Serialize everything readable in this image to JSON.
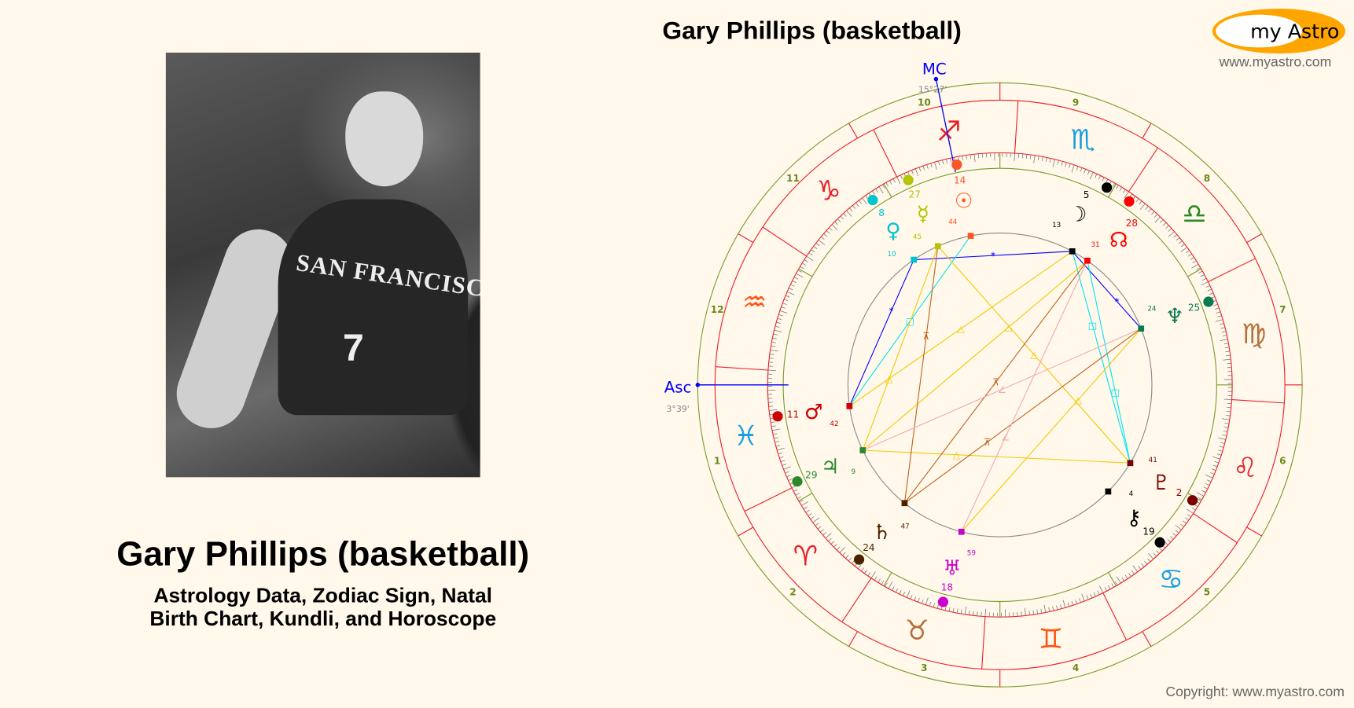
{
  "left": {
    "title": "Gary Phillips (basketball)",
    "subtitle_line1": "Astrology Data, Zodiac Sign, Natal",
    "subtitle_line2": "Birth Chart, Kundli, and Horoscope",
    "photo_jersey": "SAN FRANCISCO",
    "photo_number": "7"
  },
  "header": {
    "chart_title": "Gary Phillips (basketball)",
    "logo_text": "my Astro",
    "url": "www.myastro.com"
  },
  "footer": {
    "copyright": "Copyright: www.myastro.com"
  },
  "chart": {
    "asc": {
      "label": "Asc",
      "value": "3°39'",
      "sign": "Pisces",
      "degree": 3,
      "minute": 39,
      "color": "#0000ff"
    },
    "mc": {
      "label": "MC",
      "value": "15°27'",
      "sign": "Sagittarius",
      "degree": 15,
      "minute": 27,
      "color": "#0000ff"
    },
    "houses": [
      "1",
      "2",
      "3",
      "4",
      "5",
      "6",
      "7",
      "8",
      "9",
      "10",
      "11",
      "12"
    ],
    "signs": [
      {
        "name": "Aries",
        "glyph": "♈",
        "color": "#e8202a"
      },
      {
        "name": "Taurus",
        "glyph": "♉",
        "color": "#b5703a"
      },
      {
        "name": "Gemini",
        "glyph": "♊",
        "color": "#ff5511"
      },
      {
        "name": "Cancer",
        "glyph": "♋",
        "color": "#1a9ee0"
      },
      {
        "name": "Leo",
        "glyph": "♌",
        "color": "#e8202a"
      },
      {
        "name": "Virgo",
        "glyph": "♍",
        "color": "#b5703a"
      },
      {
        "name": "Libra",
        "glyph": "♎",
        "color": "#2a8a2a"
      },
      {
        "name": "Scorpio",
        "glyph": "♏",
        "color": "#1a9ee0"
      },
      {
        "name": "Sagittarius",
        "glyph": "♐",
        "color": "#e8202a"
      },
      {
        "name": "Capricorn",
        "glyph": "♑",
        "color": "#e8202a"
      },
      {
        "name": "Aquarius",
        "glyph": "♒",
        "color": "#ff5511"
      },
      {
        "name": "Pisces",
        "glyph": "♓",
        "color": "#1a9ee0"
      }
    ],
    "planets": [
      {
        "name": "Sun",
        "glyph": "☉",
        "sign": "Sagittarius",
        "degree": "14",
        "minute": "44",
        "color": "#ff5522"
      },
      {
        "name": "Moon",
        "glyph": "☽",
        "sign": "Scorpio",
        "degree": "5",
        "minute": "13",
        "color": "#000000"
      },
      {
        "name": "Mercury",
        "glyph": "☿",
        "sign": "Sagittarius",
        "degree": "27",
        "minute": "45",
        "color": "#b5c400"
      },
      {
        "name": "Venus",
        "glyph": "♀",
        "sign": "Capricorn",
        "degree": "8",
        "minute": "10",
        "color": "#00c4cc"
      },
      {
        "name": "Mars",
        "glyph": "♂",
        "sign": "Pisces",
        "degree": "11",
        "minute": "42",
        "color": "#cc0000"
      },
      {
        "name": "Jupiter",
        "glyph": "♃",
        "sign": "Pisces",
        "degree": "29",
        "minute": "9",
        "color": "#2a8a2a"
      },
      {
        "name": "Saturn",
        "glyph": "♄",
        "sign": "Aries",
        "degree": "24",
        "minute": "47",
        "color": "#4a2200"
      },
      {
        "name": "Uranus",
        "glyph": "♅",
        "sign": "Taurus",
        "degree": "18",
        "minute": "59",
        "color": "#cc00cc"
      },
      {
        "name": "Neptune",
        "glyph": "♆",
        "sign": "Virgo",
        "degree": "25",
        "minute": "24",
        "color": "#0a7a50"
      },
      {
        "name": "Pluto",
        "glyph": "♇",
        "sign": "Leo",
        "degree": "2",
        "minute": "41",
        "color": "#7a0000"
      },
      {
        "name": "Chiron",
        "glyph": "⚷",
        "sign": "Cancer",
        "degree": "19",
        "minute": "4",
        "color": "#000000"
      },
      {
        "name": "Node",
        "glyph": "☊",
        "sign": "Libra",
        "degree": "28",
        "minute": "31",
        "color": "#ff0000"
      }
    ],
    "aspect_colors": {
      "sextile": "#0000ff",
      "square": "#00e5ee",
      "trine": "#f5c800",
      "quincunx": "#c0601a",
      "semisquare": "#f4a8b0"
    },
    "aspect_symbols": {
      "sextile": "*",
      "square": "□",
      "trine": "△",
      "quincunx": "⊼",
      "semisquare": "∠"
    },
    "aspects": [
      {
        "from": "Venus",
        "to": "Moon",
        "type": "sextile"
      },
      {
        "from": "Venus",
        "to": "Mars",
        "type": "sextile"
      },
      {
        "from": "Moon",
        "to": "Neptune",
        "type": "sextile"
      },
      {
        "from": "Sun",
        "to": "Mars",
        "type": "square"
      },
      {
        "from": "Moon",
        "to": "Pluto",
        "type": "square"
      },
      {
        "from": "Node",
        "to": "Pluto",
        "type": "square"
      },
      {
        "from": "Mercury",
        "to": "Pluto",
        "type": "trine"
      },
      {
        "from": "Jupiter",
        "to": "Pluto",
        "type": "trine"
      },
      {
        "from": "Uranus",
        "to": "Neptune",
        "type": "trine"
      },
      {
        "from": "Mars",
        "to": "Moon",
        "type": "trine"
      },
      {
        "from": "Jupiter",
        "to": "Mercury",
        "type": "trine"
      },
      {
        "from": "Jupiter",
        "to": "Node",
        "type": "trine"
      },
      {
        "from": "Saturn",
        "to": "Node",
        "type": "quincunx"
      },
      {
        "from": "Saturn",
        "to": "Neptune",
        "type": "quincunx"
      },
      {
        "from": "Saturn",
        "to": "Mercury",
        "type": "quincunx"
      },
      {
        "from": "Jupiter",
        "to": "Neptune",
        "type": "semisquare"
      },
      {
        "from": "Uranus",
        "to": "Node",
        "type": "semisquare"
      }
    ]
  }
}
